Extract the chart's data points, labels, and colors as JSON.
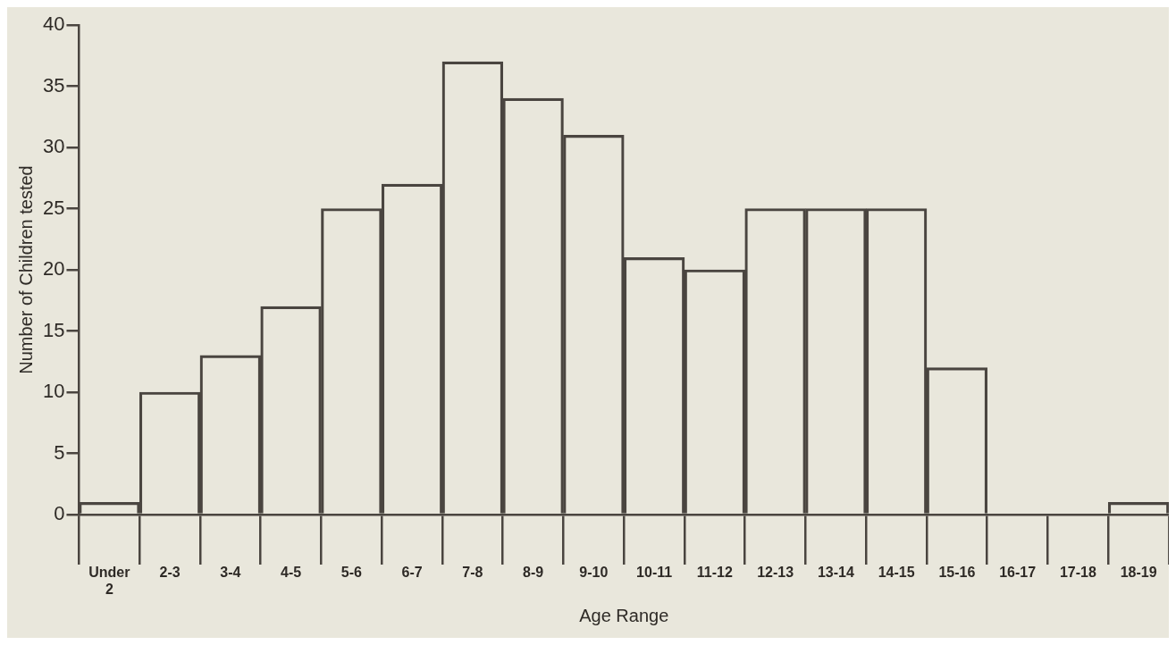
{
  "chart_data": {
    "type": "bar",
    "xlabel": "Age Range",
    "ylabel": "Number of Children tested",
    "categories": [
      "Under 2",
      "2-3",
      "3-4",
      "4-5",
      "5-6",
      "6-7",
      "7-8",
      "8-9",
      "9-10",
      "10-11",
      "11-12",
      "12-13",
      "13-14",
      "14-15",
      "15-16",
      "16-17",
      "17-18",
      "18-19"
    ],
    "values": [
      1,
      10,
      13,
      17,
      25,
      27,
      37,
      34,
      31,
      21,
      20,
      25,
      25,
      25,
      12,
      0,
      0,
      1
    ],
    "color": "#4a4540",
    "ylim": [
      0,
      40
    ],
    "yticks": [
      0,
      5,
      10,
      15,
      20,
      25,
      30,
      35,
      40
    ],
    "grid": false,
    "legend": false
  }
}
